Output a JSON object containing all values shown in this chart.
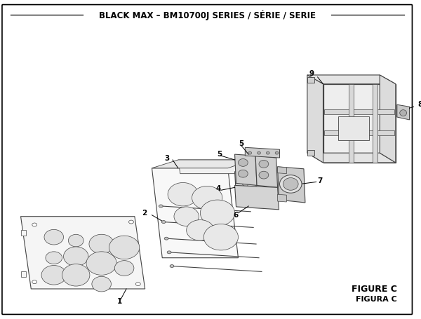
{
  "title": "BLACK MAX – BM10700J SERIES / SÉRIE / SERIE",
  "figure_label": "FIGURE C",
  "figura_label": "FIGURA C",
  "bg_color": "#ffffff",
  "line_color": "#000000",
  "part_edge": "#444444",
  "part_fill": "#f0f0f0",
  "part_fill2": "#e8e8e8",
  "dark_fill": "#c8c8c8",
  "title_fontsize": 8.5,
  "label_fontsize": 7.5,
  "figure_label_fontsize": 9
}
